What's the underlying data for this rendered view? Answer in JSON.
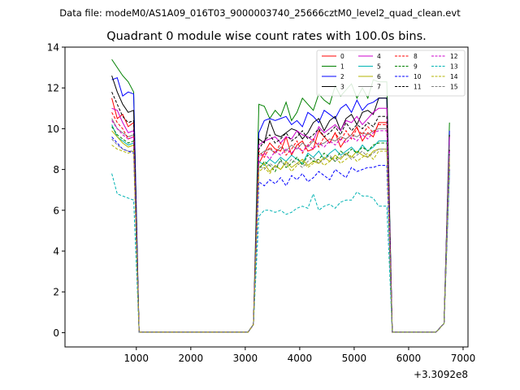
{
  "chart_data": {
    "type": "line",
    "suptitle": "Data file: modeM0/AS1A09_016T03_9000003740_25666cztM0_level2_quad_clean.evt",
    "title": "Quadrant 0 module wise count rates with 100.0s bins.",
    "xlabel": "",
    "ylabel": "",
    "x_offset_label": "+3.3092e8",
    "xlim": [
      -310,
      7090
    ],
    "ylim": [
      -0.7,
      14.0
    ],
    "x_ticks": [
      1000,
      2000,
      3000,
      4000,
      5000,
      6000,
      7000
    ],
    "x_tick_labels": [
      "1000",
      "2000",
      "3000",
      "4000",
      "5000",
      "6000",
      "7000"
    ],
    "y_ticks": [
      0,
      2,
      4,
      6,
      8,
      10,
      12,
      14
    ],
    "y_tick_labels": [
      "0",
      "2",
      "4",
      "6",
      "8",
      "10",
      "12",
      "14"
    ],
    "grid": false,
    "legend_position": "top-right",
    "segments": [
      {
        "x_start": 550,
        "x_end": 1050
      },
      {
        "x_start": 1050,
        "x_end": 3050
      },
      {
        "x_start": 3050,
        "x_end": 5700
      },
      {
        "x_start": 5700,
        "x_end": 6650
      },
      {
        "x_start": 6650,
        "x_end": 6750
      }
    ],
    "series": [
      {
        "name": "0",
        "color": "#ff0000",
        "dashed": false,
        "seg1": [
          11.5,
          10.5,
          10.7,
          10.1,
          10.3,
          0.02
        ],
        "plateau": [
          8.3,
          8.8,
          9.3,
          9.0,
          8.9,
          9.6,
          8.7,
          9.2,
          9.4,
          8.9,
          9.0,
          9.9,
          9.6,
          9.3,
          9.8,
          9.1,
          9.5,
          9.7,
          10.1,
          9.4,
          9.8,
          9.6,
          10.3
        ],
        "end": 8.0
      },
      {
        "name": "1",
        "color": "#008000",
        "dashed": false,
        "seg1": [
          13.4,
          13.0,
          12.6,
          12.3,
          11.8,
          0.02
        ],
        "plateau": [
          11.2,
          11.1,
          10.5,
          10.9,
          10.6,
          11.3,
          10.4,
          10.8,
          11.5,
          11.2,
          10.9,
          11.7,
          11.4,
          11.2,
          12.1,
          11.6,
          11.9,
          12.2,
          11.5,
          12.0,
          11.5,
          12.4,
          12.3
        ],
        "end": 10.3
      },
      {
        "name": "2",
        "color": "#0000ff",
        "dashed": false,
        "seg1": [
          12.4,
          12.5,
          11.6,
          11.8,
          11.7,
          0.02
        ],
        "plateau": [
          9.8,
          10.4,
          10.5,
          10.4,
          10.5,
          10.6,
          10.2,
          10.4,
          10.1,
          10.8,
          10.6,
          10.3,
          10.9,
          10.7,
          10.5,
          11.0,
          11.2,
          10.8,
          11.4,
          10.9,
          11.2,
          11.3,
          11.5
        ],
        "end": 9.9
      },
      {
        "name": "3",
        "color": "#000000",
        "dashed": false,
        "seg1": [
          12.6,
          11.8,
          11.2,
          10.8,
          10.9,
          0.02
        ],
        "plateau": [
          9.5,
          9.3,
          10.4,
          9.7,
          9.6,
          9.8,
          10.0,
          9.9,
          9.5,
          9.8,
          10.3,
          10.5,
          9.9,
          10.4,
          10.6,
          9.9,
          10.5,
          10.7,
          10.2,
          10.8,
          10.9,
          10.7,
          11.5
        ],
        "end": 9.7
      },
      {
        "name": "4",
        "color": "#cc00cc",
        "dashed": false,
        "seg1": [
          11.0,
          10.9,
          10.3,
          9.8,
          9.9,
          0.02
        ],
        "plateau": [
          9.2,
          9.4,
          9.5,
          9.6,
          9.3,
          9.6,
          9.5,
          9.9,
          9.7,
          9.6,
          9.4,
          10.1,
          9.8,
          10.0,
          10.2,
          9.9,
          10.4,
          10.3,
          10.6,
          10.2,
          10.5,
          10.8,
          11.0
        ],
        "end": 9.6
      },
      {
        "name": "5",
        "color": "#00b3b3",
        "dashed": false,
        "seg1": [
          10.2,
          9.6,
          9.4,
          9.2,
          9.3,
          0.02
        ],
        "plateau": [
          8.4,
          8.2,
          8.5,
          8.3,
          8.6,
          8.4,
          8.7,
          8.5,
          8.3,
          8.8,
          8.6,
          8.9,
          8.5,
          8.8,
          9.0,
          8.7,
          8.9,
          9.1,
          8.8,
          9.2,
          8.9,
          9.1,
          9.4
        ],
        "end": 8.8
      },
      {
        "name": "6",
        "color": "#b3b300",
        "dashed": false,
        "seg1": [
          9.9,
          9.6,
          9.3,
          9.1,
          9.2,
          0.02
        ],
        "plateau": [
          8.1,
          8.3,
          7.9,
          8.2,
          8.0,
          8.4,
          8.1,
          8.3,
          8.5,
          8.2,
          8.4,
          8.3,
          8.6,
          8.4,
          8.7,
          8.5,
          8.8,
          8.6,
          8.9,
          8.7,
          8.6,
          8.9,
          9.0
        ],
        "end": 8.6
      },
      {
        "name": "7",
        "color": "#808080",
        "dashed": false,
        "seg1": [
          10.5,
          10.0,
          9.8,
          9.6,
          9.7,
          0.02
        ],
        "plateau": [
          8.7,
          8.9,
          9.0,
          8.8,
          9.1,
          8.9,
          9.2,
          9.0,
          9.3,
          9.1,
          9.4,
          9.2,
          9.3,
          9.5,
          9.4,
          9.6,
          9.5,
          9.7,
          9.6,
          9.8,
          9.7,
          9.9,
          10.0
        ],
        "end": 9.2
      },
      {
        "name": "8",
        "color": "#ff0000",
        "dashed": true,
        "seg1": [
          10.8,
          10.3,
          10.0,
          9.5,
          9.6,
          0.02
        ],
        "plateau": [
          8.9,
          8.6,
          9.1,
          8.8,
          9.3,
          8.7,
          9.0,
          9.4,
          8.8,
          9.2,
          9.5,
          9.1,
          9.6,
          9.3,
          9.8,
          9.4,
          9.9,
          9.5,
          10.0,
          9.7,
          10.1,
          9.8,
          10.2
        ],
        "end": 8.4
      },
      {
        "name": "9",
        "color": "#008000",
        "dashed": true,
        "seg1": [
          10.1,
          9.7,
          9.5,
          9.3,
          9.4,
          0.02
        ],
        "plateau": [
          8.0,
          8.4,
          8.2,
          7.9,
          8.5,
          8.1,
          8.3,
          8.6,
          8.2,
          8.7,
          8.4,
          8.5,
          8.8,
          8.6,
          8.4,
          8.9,
          8.7,
          9.0,
          8.8,
          9.1,
          8.9,
          9.2,
          9.3
        ],
        "end": 8.3
      },
      {
        "name": "10",
        "color": "#0000ff",
        "dashed": true,
        "seg1": [
          9.6,
          9.3,
          9.0,
          8.9,
          8.8,
          0.02
        ],
        "plateau": [
          7.4,
          7.2,
          7.5,
          7.3,
          7.6,
          7.2,
          7.7,
          7.5,
          7.8,
          7.4,
          7.6,
          7.9,
          7.7,
          7.5,
          8.0,
          7.8,
          7.6,
          8.1,
          7.9,
          8.0,
          8.1,
          8.1,
          8.2
        ],
        "end": 8.0
      },
      {
        "name": "11",
        "color": "#000000",
        "dashed": true,
        "seg1": [
          11.8,
          11.2,
          10.6,
          10.3,
          10.4,
          0.02
        ],
        "plateau": [
          9.0,
          9.4,
          9.7,
          9.3,
          9.5,
          9.8,
          9.4,
          9.6,
          9.9,
          9.5,
          9.7,
          10.0,
          9.6,
          9.8,
          10.1,
          9.7,
          10.3,
          9.9,
          10.2,
          10.0,
          10.3,
          10.1,
          10.6
        ],
        "end": 9.0
      },
      {
        "name": "12",
        "color": "#cc00cc",
        "dashed": true,
        "seg1": [
          10.4,
          10.0,
          9.7,
          9.5,
          9.6,
          0.02
        ],
        "plateau": [
          8.6,
          8.8,
          8.5,
          8.9,
          8.7,
          9.0,
          8.8,
          9.1,
          8.9,
          9.2,
          9.0,
          9.3,
          9.1,
          9.4,
          9.2,
          9.5,
          9.3,
          9.6,
          9.4,
          9.7,
          9.5,
          9.8,
          9.9
        ],
        "end": 8.9
      },
      {
        "name": "13",
        "color": "#00b3b3",
        "dashed": true,
        "seg1": [
          7.8,
          6.8,
          6.7,
          6.6,
          6.5,
          0.02
        ],
        "plateau": [
          5.7,
          6.0,
          6.0,
          5.9,
          6.0,
          5.8,
          5.9,
          6.1,
          6.2,
          6.1,
          6.8,
          6.0,
          6.2,
          6.3,
          6.1,
          6.4,
          6.5,
          6.5,
          6.9,
          6.7,
          6.7,
          6.6,
          6.2
        ],
        "end": 7.9
      },
      {
        "name": "14",
        "color": "#b3b300",
        "dashed": true,
        "seg1": [
          9.2,
          9.0,
          8.9,
          8.8,
          8.9,
          0.02
        ],
        "plateau": [
          7.9,
          8.1,
          7.8,
          8.2,
          8.0,
          8.3,
          7.9,
          8.2,
          8.4,
          8.1,
          8.3,
          8.5,
          8.2,
          8.4,
          8.6,
          8.3,
          8.5,
          8.7,
          8.4,
          8.6,
          8.8,
          8.5,
          8.9
        ],
        "end": 8.5
      },
      {
        "name": "15",
        "color": "#808080",
        "dashed": true,
        "seg1": [
          9.5,
          9.2,
          9.0,
          8.9,
          8.9,
          0.02
        ],
        "plateau": [
          8.2,
          8.0,
          8.3,
          8.1,
          8.4,
          8.2,
          8.5,
          8.3,
          8.1,
          8.4,
          8.6,
          8.3,
          8.5,
          8.7,
          8.4,
          8.6,
          8.8,
          8.5,
          8.7,
          8.9,
          8.6,
          8.8,
          9.0
        ],
        "end": 8.7
      }
    ]
  }
}
